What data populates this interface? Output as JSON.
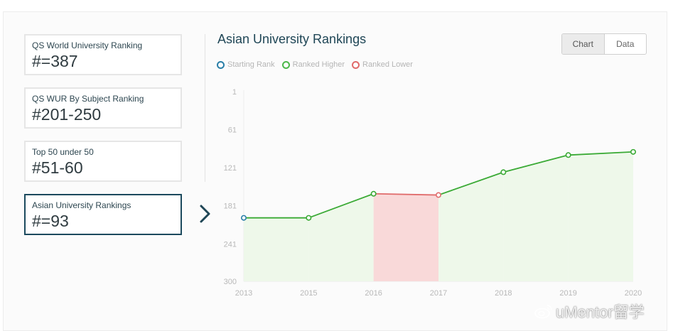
{
  "sidebar": {
    "cards": [
      {
        "title": "QS World University Ranking",
        "value": "#=387"
      },
      {
        "title": "QS WUR By Subject Ranking",
        "value": "#201-250"
      },
      {
        "title": "Top 50 under 50",
        "value": "#51-60"
      },
      {
        "title": "Asian University Rankings",
        "value": "#=93",
        "active": true
      }
    ]
  },
  "view_toggle": {
    "chart_label": "Chart",
    "data_label": "Data",
    "selected": "Chart"
  },
  "legend": [
    {
      "label": "Starting Rank",
      "color": "#2a7fa8"
    },
    {
      "label": "Ranked Higher",
      "color": "#4cb84a"
    },
    {
      "label": "Ranked Lower",
      "color": "#e06b6b"
    }
  ],
  "colors": {
    "higher_line": "#3aaa35",
    "higher_fill": "#eef8ea",
    "lower_fill": "#f9d9d9",
    "start_marker": "#2a7fa8",
    "axis_text": "#b8b8b8"
  },
  "chart_data": {
    "type": "line",
    "title": "Asian University Rankings",
    "x": [
      "2013",
      "2015",
      "2016",
      "2017",
      "2018",
      "2019",
      "2020"
    ],
    "series": [
      {
        "values": [
          200,
          200,
          162,
          164,
          128,
          101,
          96
        ]
      }
    ],
    "y_ticks": [
      1,
      61,
      121,
      181,
      241,
      300
    ],
    "ylim": [
      1,
      300
    ],
    "y_inverted": true,
    "xlabel": "",
    "ylabel": "",
    "grid": false,
    "legend_position": "top-left"
  },
  "watermark": {
    "text": "uMentor留学",
    "icon": "weibo-icon"
  }
}
